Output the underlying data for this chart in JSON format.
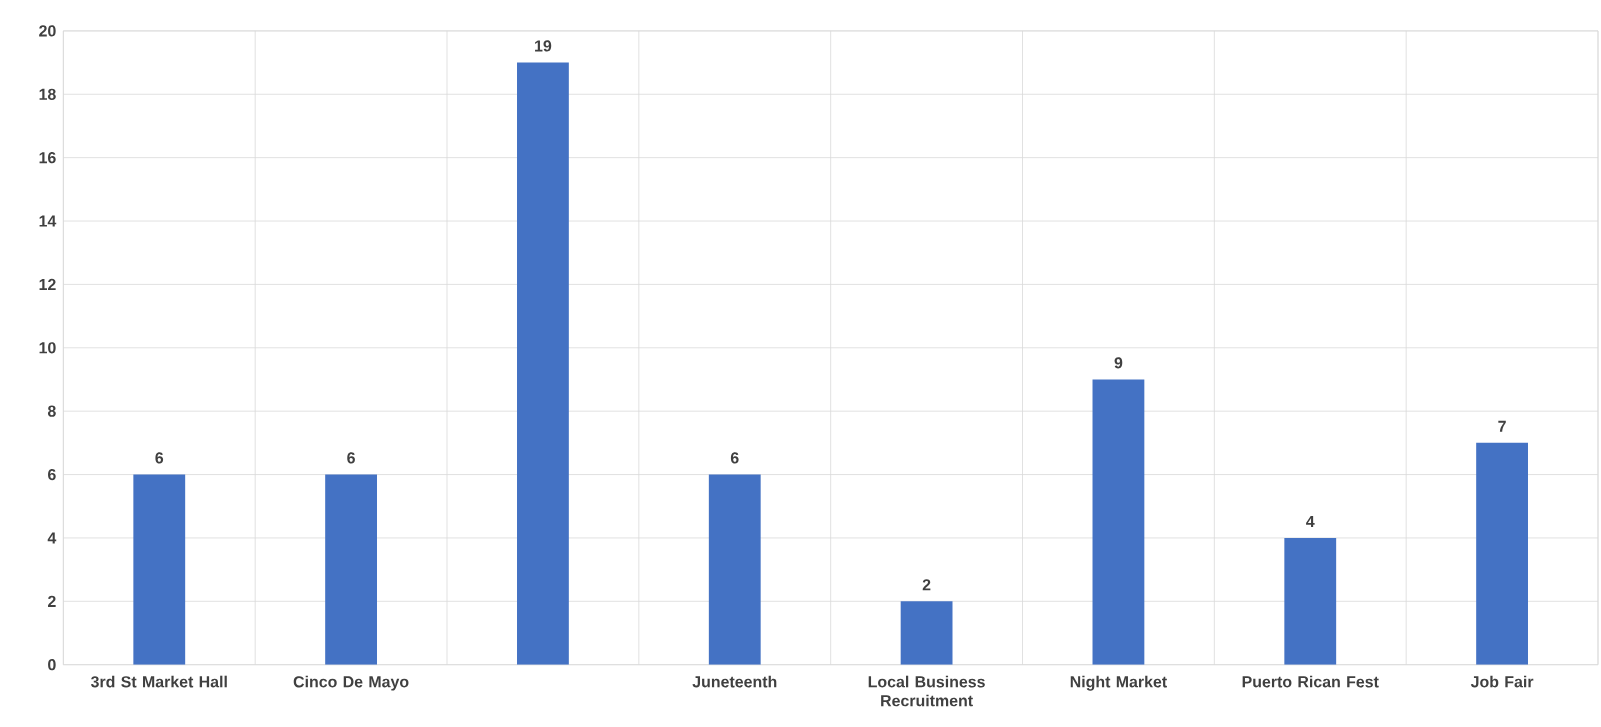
{
  "chart_data": {
    "type": "bar",
    "categories": [
      "3rd St Market Hall",
      "Cinco De Mayo",
      null,
      "Juneteenth",
      "Local Business Recruitment",
      "Night Market",
      "Puerto Rican Fest",
      "Job Fair"
    ],
    "values": [
      6,
      6,
      19,
      6,
      2,
      9,
      4,
      7
    ],
    "color": "#4472c4",
    "ylim": [
      0,
      20
    ],
    "yticks": [
      0,
      2,
      4,
      6,
      8,
      10,
      12,
      14,
      16,
      18,
      20
    ],
    "grid": true,
    "data_labels": true
  }
}
